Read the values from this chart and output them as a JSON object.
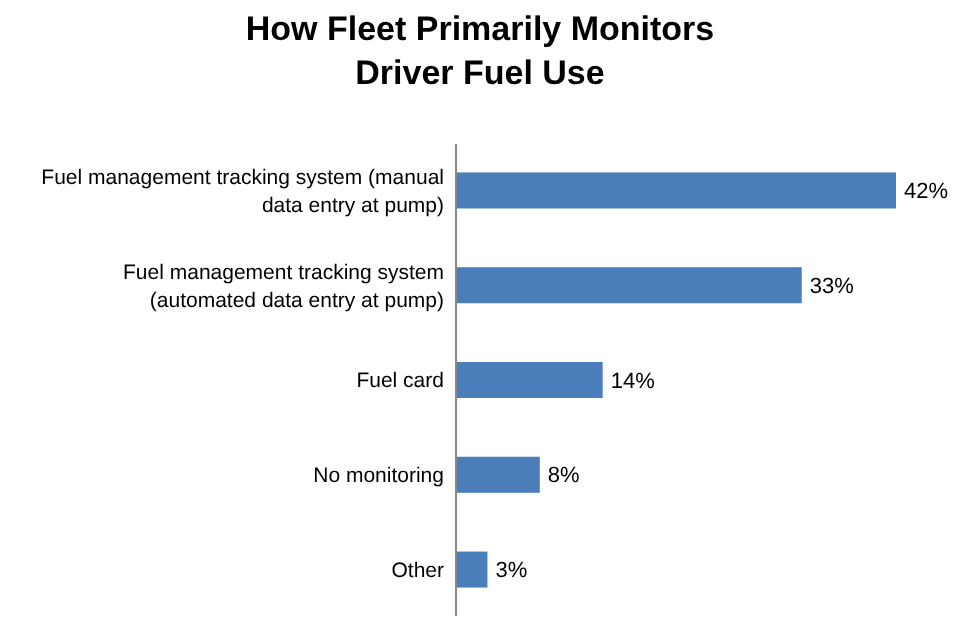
{
  "chart_data": {
    "type": "bar",
    "orientation": "horizontal",
    "title": "How Fleet Primarily Monitors Driver Fuel Use",
    "categories": [
      "Fuel management tracking system (manual data entry at pump)",
      "Fuel management tracking system (automated data entry at pump)",
      "Fuel card",
      "No monitoring",
      "Other"
    ],
    "values": [
      42,
      33,
      14,
      8,
      3
    ],
    "value_labels": [
      "42%",
      "33%",
      "14%",
      "8%",
      "3%"
    ],
    "color": "#4a7ebb"
  }
}
